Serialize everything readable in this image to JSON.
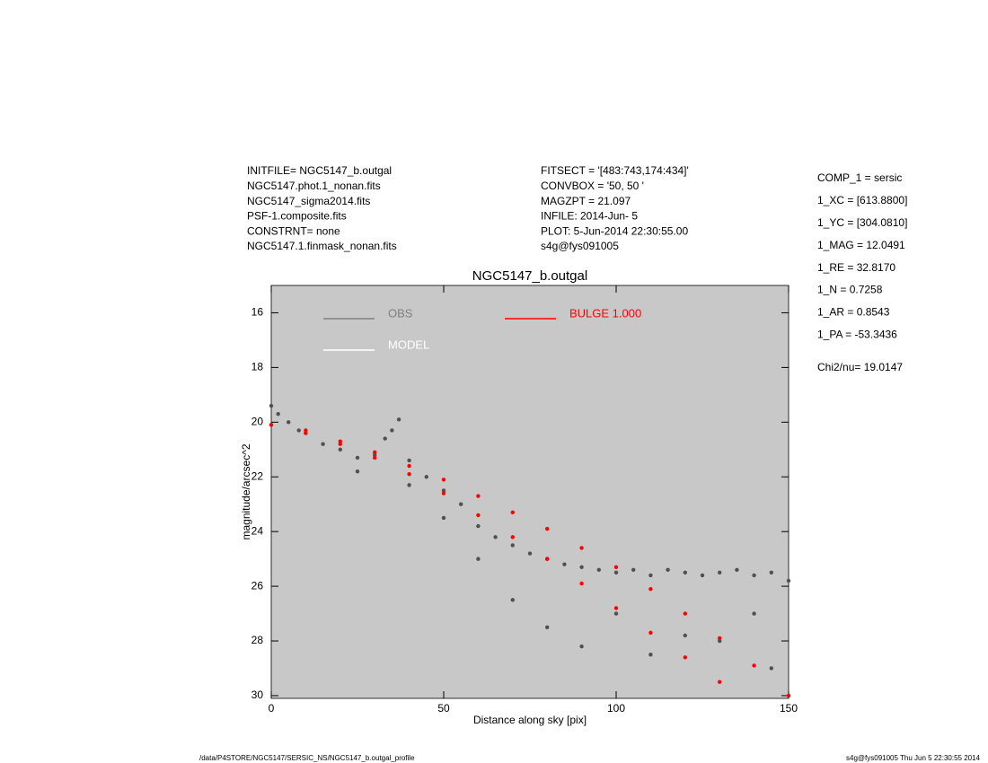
{
  "header": {
    "left": [
      "INITFILE= NGC5147_b.outgal",
      "NGC5147.phot.1_nonan.fits",
      "NGC5147_sigma2014.fits",
      "PSF-1.composite.fits",
      "CONSTRNT= none",
      "NGC5147.1.finmask_nonan.fits"
    ],
    "middle": [
      "FITSECT = '[483:743,174:434]'",
      "CONVBOX = '50, 50  '",
      "MAGZPT  =             21.097",
      "INFILE: 2014-Jun- 5",
      "PLOT:  5-Jun-2014 22:30:55.00",
      "s4g@fys091005"
    ],
    "right": [
      "COMP_1  = sersic",
      "1_XC    = [613.8800]",
      "1_YC    = [304.0810]",
      "1_MAG   = 12.0491",
      "1_RE    = 32.8170",
      "1_N     = 0.7258",
      "1_AR    = 0.8543",
      "1_PA    = -53.3436"
    ],
    "chi2": "Chi2/nu=      19.0147"
  },
  "footer": {
    "left": "/data/P4STORE/NGC5147/SERSIC_NS/NGC5147_b.outgal_profile",
    "right": "s4g@fys091005  Thu Jun  5 22:30:55 2014"
  },
  "chart_data": {
    "type": "scatter",
    "title": "NGC5147_b.outgal",
    "x_label": "Distance along sky [pix]",
    "y_label": "magnitude/arcsec^2",
    "xlim": [
      0,
      150
    ],
    "ylim": [
      30.1,
      15
    ],
    "xticks": [
      0,
      50,
      100,
      150
    ],
    "yticks": [
      16,
      18,
      20,
      22,
      24,
      26,
      28,
      30
    ],
    "background": "#c8c8c8",
    "legend": [
      {
        "name": "OBS",
        "color": "#808080"
      },
      {
        "name": "MODEL",
        "color": "#ffffff"
      },
      {
        "name": "BULGE  1.000",
        "color": "#ff0000"
      }
    ],
    "series": [
      {
        "name": "OBS",
        "color": "#505050",
        "x": [
          0,
          2,
          5,
          8,
          10,
          15,
          20,
          25,
          30,
          33,
          35,
          37,
          40,
          45,
          50,
          55,
          60,
          65,
          70,
          75,
          80,
          85,
          90,
          95,
          100,
          105,
          110,
          115,
          120,
          125,
          130,
          135,
          140,
          145,
          150,
          60,
          70,
          80,
          90,
          100,
          110,
          120,
          130,
          140,
          145,
          50,
          40,
          25
        ],
        "values": [
          19.4,
          19.7,
          20.0,
          20.3,
          20.4,
          20.8,
          21.0,
          21.3,
          21.2,
          20.6,
          20.3,
          19.9,
          21.4,
          22.0,
          22.5,
          23.0,
          23.8,
          24.2,
          24.5,
          24.8,
          25.0,
          25.2,
          25.3,
          25.4,
          25.5,
          25.4,
          25.6,
          25.4,
          25.5,
          25.6,
          25.5,
          25.4,
          25.6,
          25.5,
          25.8,
          25.0,
          26.5,
          27.5,
          28.2,
          27.0,
          28.5,
          27.8,
          28.0,
          27.0,
          29.0,
          23.5,
          22.3,
          21.8
        ]
      },
      {
        "name": "BULGE  1.000",
        "color": "#ff0000",
        "x": [
          0,
          10,
          20,
          30,
          40,
          50,
          60,
          70,
          80,
          90,
          100,
          110,
          120,
          130,
          0,
          10,
          20,
          30,
          40,
          50,
          60,
          70,
          80,
          90,
          100,
          110,
          120,
          130,
          140,
          150
        ],
        "values": [
          20.1,
          20.4,
          20.8,
          21.3,
          21.9,
          22.6,
          23.4,
          24.2,
          25.0,
          25.9,
          26.8,
          27.7,
          28.6,
          29.5,
          20.1,
          20.3,
          20.7,
          21.1,
          21.6,
          22.1,
          22.7,
          23.3,
          23.9,
          24.6,
          25.3,
          26.1,
          27.0,
          27.9,
          28.9,
          30.0
        ]
      }
    ]
  }
}
